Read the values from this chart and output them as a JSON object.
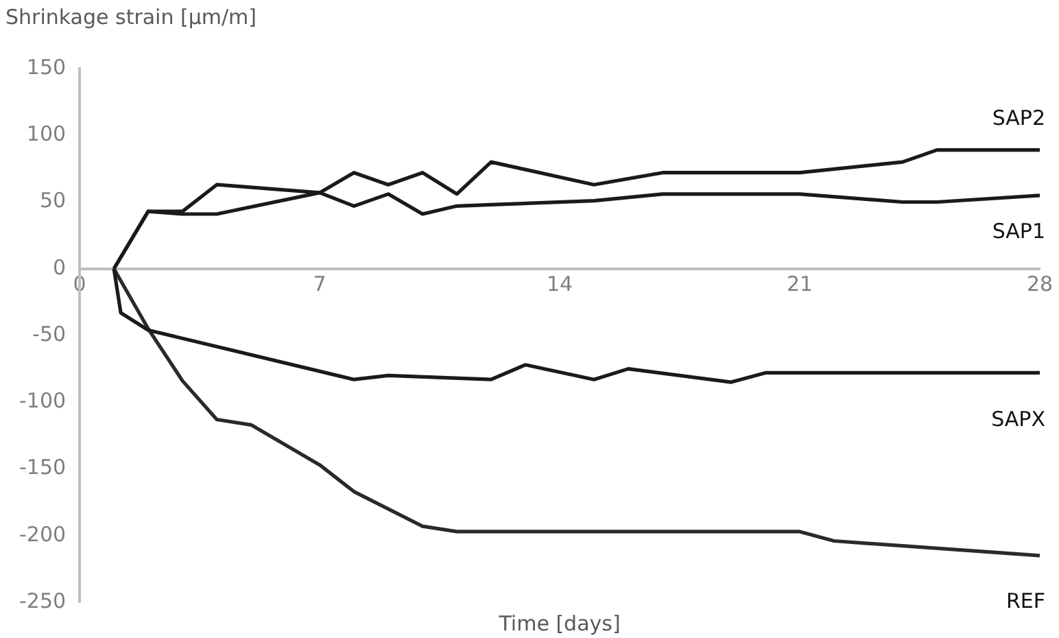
{
  "chart_data": {
    "type": "line",
    "ylabel": "Shrinkage strain [µm/m]",
    "xlabel": "Time [days]",
    "xlim": [
      0,
      28
    ],
    "xticks": [
      0,
      7,
      14,
      21,
      28
    ],
    "ylim": [
      -250,
      150
    ],
    "yticks": [
      150,
      100,
      50,
      0,
      -50,
      -100,
      -150,
      -200,
      -250
    ],
    "grid": false,
    "legend": false,
    "marker": "none",
    "line_style": "solid",
    "series": [
      {
        "name": "SAP2",
        "color": "#1a1a1a",
        "x": [
          1,
          2,
          3,
          4,
          7,
          8,
          9,
          10,
          11,
          12,
          15,
          17,
          21,
          24,
          25,
          28
        ],
        "values": [
          0,
          43,
          43,
          63,
          57,
          72,
          63,
          72,
          56,
          80,
          63,
          72,
          72,
          80,
          89,
          89
        ]
      },
      {
        "name": "SAP1",
        "color": "#1a1a1a",
        "x": [
          1,
          2,
          3,
          4,
          7,
          8,
          9,
          10,
          11,
          12,
          15,
          17,
          21,
          24,
          25,
          28
        ],
        "values": [
          0,
          43,
          41,
          41,
          57,
          47,
          56,
          41,
          47,
          48,
          51,
          56,
          56,
          50,
          50,
          55
        ]
      },
      {
        "name": "SAPX",
        "color": "#1a1a1a",
        "x": [
          1,
          1.2,
          2,
          8,
          9,
          12,
          13,
          15,
          16,
          19,
          20,
          28
        ],
        "values": [
          0,
          -33,
          -46,
          -83,
          -80,
          -83,
          -72,
          -83,
          -75,
          -85,
          -78,
          -78
        ]
      },
      {
        "name": "REF",
        "color": "#2a2a2a",
        "x": [
          1,
          2,
          3,
          4,
          5,
          7,
          8,
          10,
          11,
          21,
          22,
          28
        ],
        "values": [
          0,
          -45,
          -84,
          -113,
          -117,
          -147,
          -167,
          -193,
          -197,
          -197,
          -204,
          -215
        ]
      }
    ]
  }
}
